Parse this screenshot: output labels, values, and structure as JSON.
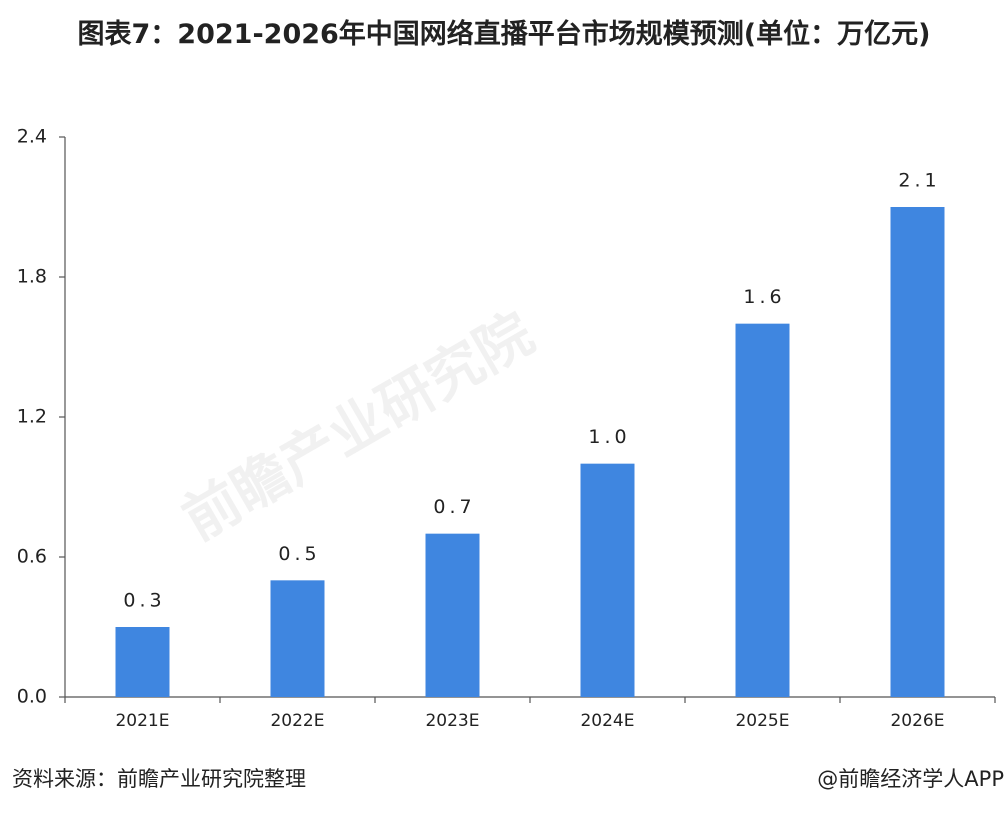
{
  "chart_data": {
    "type": "bar",
    "title": "图表7：2021-2026年中国网络直播平台市场规模预测(单位：万亿元)",
    "categories": [
      "2021E",
      "2022E",
      "2023E",
      "2024E",
      "2025E",
      "2026E"
    ],
    "values": [
      0.3,
      0.5,
      0.7,
      1.0,
      1.6,
      2.1
    ],
    "value_labels": [
      "0.3",
      "0.5",
      "0.7",
      "1.0",
      "1.6",
      "2.1"
    ],
    "color": "#3f86e0",
    "ylim": [
      0,
      2.4
    ],
    "yticks": [
      {
        "value": 0,
        "label": "0.0"
      },
      0.6,
      1.2,
      1.8,
      2.4
    ],
    "grid": false,
    "source": "资料来源：前瞻产业研究院整理",
    "credit": "@前瞻经济学人APP",
    "watermark": "前瞻产业研究院"
  }
}
